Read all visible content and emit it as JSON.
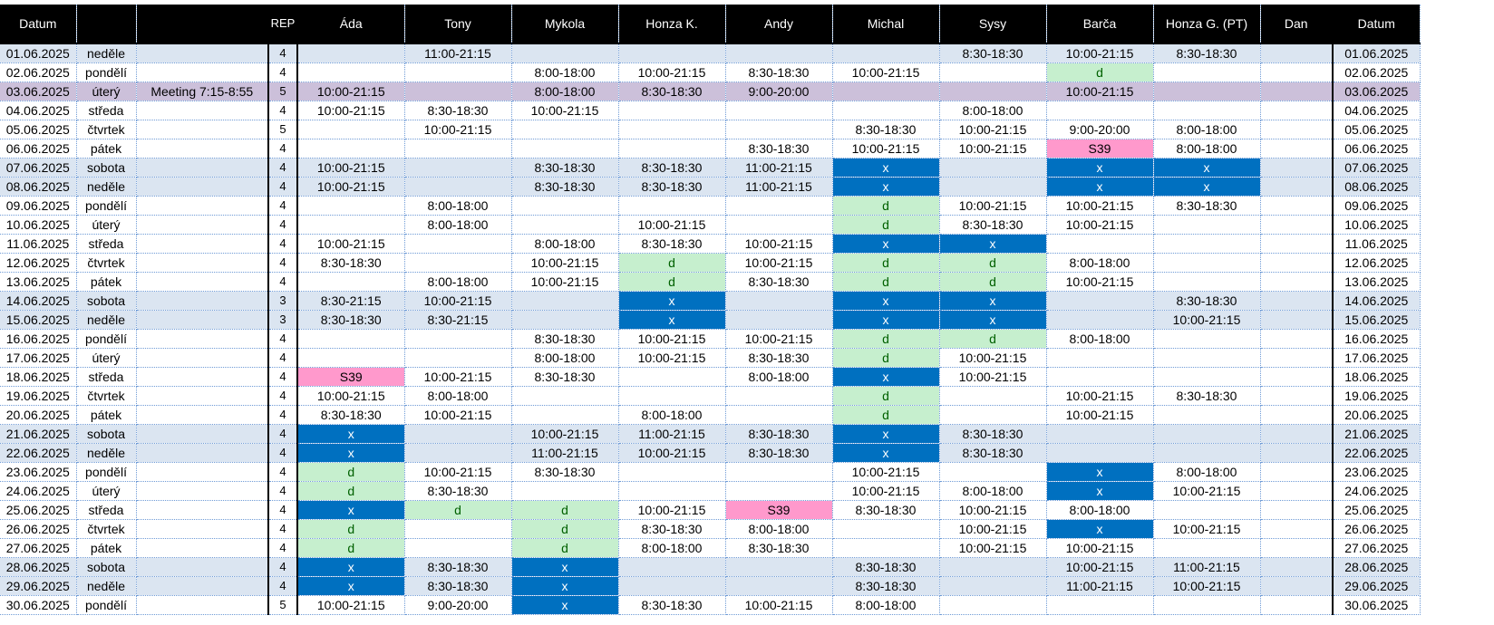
{
  "header": [
    "Datum",
    "",
    "",
    "REP",
    "Áda",
    "Tony",
    "Mykola",
    "Honza K.",
    "Andy",
    "Michal",
    "Sysy",
    "Barča",
    "Honza G. (PT)",
    "Dan",
    "Datum"
  ],
  "rows": [
    {
      "date": "01.06.2025",
      "day": "neděle",
      "note": "",
      "rep": "4",
      "shifts": [
        "",
        "11:00-21:15",
        "",
        "",
        "",
        "",
        "8:30-18:30",
        "10:00-21:15",
        "8:30-18:30",
        ""
      ]
    },
    {
      "date": "02.06.2025",
      "day": "pondělí",
      "note": "",
      "rep": "4",
      "shifts": [
        "",
        "",
        "8:00-18:00",
        "10:00-21:15",
        "8:30-18:30",
        "10:00-21:15",
        "",
        "d",
        "",
        ""
      ]
    },
    {
      "date": "03.06.2025",
      "day": "úterý",
      "note": "Meeting 7:15-8:55",
      "rep": "5",
      "shifts": [
        "10:00-21:15",
        "",
        "8:00-18:00",
        "8:30-18:30",
        "9:00-20:00",
        "",
        "",
        "10:00-21:15",
        "",
        ""
      ]
    },
    {
      "date": "04.06.2025",
      "day": "středa",
      "note": "",
      "rep": "4",
      "shifts": [
        "10:00-21:15",
        "8:30-18:30",
        "10:00-21:15",
        "",
        "",
        "",
        "8:00-18:00",
        "",
        "",
        ""
      ]
    },
    {
      "date": "05.06.2025",
      "day": "čtvrtek",
      "note": "",
      "rep": "5",
      "shifts": [
        "",
        "10:00-21:15",
        "",
        "",
        "",
        "8:30-18:30",
        "10:00-21:15",
        "9:00-20:00",
        "8:00-18:00",
        ""
      ]
    },
    {
      "date": "06.06.2025",
      "day": "pátek",
      "note": "",
      "rep": "4",
      "shifts": [
        "",
        "",
        "",
        "",
        "8:30-18:30",
        "10:00-21:15",
        "10:00-21:15",
        "S39",
        "8:00-18:00",
        ""
      ]
    },
    {
      "date": "07.06.2025",
      "day": "sobota",
      "note": "",
      "rep": "4",
      "shifts": [
        "10:00-21:15",
        "",
        "8:30-18:30",
        "8:30-18:30",
        "11:00-21:15",
        "x",
        "",
        "x",
        "x",
        ""
      ]
    },
    {
      "date": "08.06.2025",
      "day": "neděle",
      "note": "",
      "rep": "4",
      "shifts": [
        "10:00-21:15",
        "",
        "8:30-18:30",
        "8:30-18:30",
        "11:00-21:15",
        "x",
        "",
        "x",
        "x",
        ""
      ]
    },
    {
      "date": "09.06.2025",
      "day": "pondělí",
      "note": "",
      "rep": "4",
      "shifts": [
        "",
        "8:00-18:00",
        "",
        "",
        "",
        "d",
        "10:00-21:15",
        "10:00-21:15",
        "8:30-18:30",
        ""
      ]
    },
    {
      "date": "10.06.2025",
      "day": "úterý",
      "note": "",
      "rep": "4",
      "shifts": [
        "",
        "8:00-18:00",
        "",
        "10:00-21:15",
        "",
        "d",
        "8:30-18:30",
        "10:00-21:15",
        "",
        ""
      ]
    },
    {
      "date": "11.06.2025",
      "day": "středa",
      "note": "",
      "rep": "4",
      "shifts": [
        "10:00-21:15",
        "",
        "8:00-18:00",
        "8:30-18:30",
        "10:00-21:15",
        "x",
        "x",
        "",
        "",
        ""
      ]
    },
    {
      "date": "12.06.2025",
      "day": "čtvrtek",
      "note": "",
      "rep": "4",
      "shifts": [
        "8:30-18:30",
        "",
        "10:00-21:15",
        "d",
        "10:00-21:15",
        "d",
        "d",
        "8:00-18:00",
        "",
        ""
      ]
    },
    {
      "date": "13.06.2025",
      "day": "pátek",
      "note": "",
      "rep": "4",
      "shifts": [
        "",
        "8:00-18:00",
        "10:00-21:15",
        "d",
        "8:30-18:30",
        "d",
        "d",
        "10:00-21:15",
        "",
        ""
      ]
    },
    {
      "date": "14.06.2025",
      "day": "sobota",
      "note": "",
      "rep": "3",
      "shifts": [
        "8:30-21:15",
        "10:00-21:15",
        "",
        "x",
        "",
        "x",
        "x",
        "",
        "8:30-18:30",
        ""
      ]
    },
    {
      "date": "15.06.2025",
      "day": "neděle",
      "note": "",
      "rep": "3",
      "shifts": [
        "8:30-18:30",
        "8:30-21:15",
        "",
        "x",
        "",
        "x",
        "x",
        "",
        "10:00-21:15",
        ""
      ]
    },
    {
      "date": "16.06.2025",
      "day": "pondělí",
      "note": "",
      "rep": "4",
      "shifts": [
        "",
        "",
        "8:30-18:30",
        "10:00-21:15",
        "10:00-21:15",
        "d",
        "d",
        "8:00-18:00",
        "",
        ""
      ]
    },
    {
      "date": "17.06.2025",
      "day": "úterý",
      "note": "",
      "rep": "4",
      "shifts": [
        "",
        "",
        "8:00-18:00",
        "10:00-21:15",
        "8:30-18:30",
        "d",
        "10:00-21:15",
        "",
        "",
        ""
      ]
    },
    {
      "date": "18.06.2025",
      "day": "středa",
      "note": "",
      "rep": "4",
      "shifts": [
        "S39",
        "10:00-21:15",
        "8:30-18:30",
        "",
        "8:00-18:00",
        "x",
        "10:00-21:15",
        "",
        "",
        ""
      ]
    },
    {
      "date": "19.06.2025",
      "day": "čtvrtek",
      "note": "",
      "rep": "4",
      "shifts": [
        "10:00-21:15",
        "8:00-18:00",
        "",
        "",
        "",
        "d",
        "",
        "10:00-21:15",
        "8:30-18:30",
        ""
      ]
    },
    {
      "date": "20.06.2025",
      "day": "pátek",
      "note": "",
      "rep": "4",
      "shifts": [
        "8:30-18:30",
        "10:00-21:15",
        "",
        "8:00-18:00",
        "",
        "d",
        "",
        "10:00-21:15",
        "",
        ""
      ]
    },
    {
      "date": "21.06.2025",
      "day": "sobota",
      "note": "",
      "rep": "4",
      "shifts": [
        "x",
        "",
        "10:00-21:15",
        "11:00-21:15",
        "8:30-18:30",
        "x",
        "8:30-18:30",
        "",
        "",
        ""
      ]
    },
    {
      "date": "22.06.2025",
      "day": "neděle",
      "note": "",
      "rep": "4",
      "shifts": [
        "x",
        "",
        "11:00-21:15",
        "10:00-21:15",
        "8:30-18:30",
        "x",
        "8:30-18:30",
        "",
        "",
        ""
      ]
    },
    {
      "date": "23.06.2025",
      "day": "pondělí",
      "note": "",
      "rep": "4",
      "shifts": [
        "d",
        "10:00-21:15",
        "8:30-18:30",
        "",
        "",
        "10:00-21:15",
        "",
        "x",
        "8:00-18:00",
        ""
      ]
    },
    {
      "date": "24.06.2025",
      "day": "úterý",
      "note": "",
      "rep": "4",
      "shifts": [
        "d",
        "8:30-18:30",
        "",
        "",
        "",
        "10:00-21:15",
        "8:00-18:00",
        "x",
        "10:00-21:15",
        ""
      ]
    },
    {
      "date": "25.06.2025",
      "day": "středa",
      "note": "",
      "rep": "4",
      "shifts": [
        "x",
        "d",
        "d",
        "10:00-21:15",
        "S39",
        "8:30-18:30",
        "10:00-21:15",
        "8:00-18:00",
        "",
        ""
      ]
    },
    {
      "date": "26.06.2025",
      "day": "čtvrtek",
      "note": "",
      "rep": "4",
      "shifts": [
        "d",
        "",
        "d",
        "8:30-18:30",
        "8:00-18:00",
        "",
        "10:00-21:15",
        "x",
        "10:00-21:15",
        ""
      ]
    },
    {
      "date": "27.06.2025",
      "day": "pátek",
      "note": "",
      "rep": "4",
      "shifts": [
        "d",
        "",
        "d",
        "8:00-18:00",
        "8:30-18:30",
        "",
        "10:00-21:15",
        "10:00-21:15",
        "",
        ""
      ]
    },
    {
      "date": "28.06.2025",
      "day": "sobota",
      "note": "",
      "rep": "4",
      "shifts": [
        "x",
        "8:30-18:30",
        "x",
        "",
        "",
        "8:30-18:30",
        "",
        "10:00-21:15",
        "11:00-21:15",
        ""
      ]
    },
    {
      "date": "29.06.2025",
      "day": "neděle",
      "note": "",
      "rep": "4",
      "shifts": [
        "x",
        "8:30-18:30",
        "x",
        "",
        "",
        "8:30-18:30",
        "",
        "11:00-21:15",
        "10:00-21:15",
        ""
      ]
    },
    {
      "date": "30.06.2025",
      "day": "pondělí",
      "note": "",
      "rep": "5",
      "shifts": [
        "10:00-21:15",
        "9:00-20:00",
        "x",
        "8:30-18:30",
        "10:00-21:15",
        "8:00-18:00",
        "",
        "",
        "",
        ""
      ]
    }
  ],
  "colors": {
    "header_bg": "#000000",
    "weekend_row": "#dbe5f1",
    "meeting_row": "#ccc0da",
    "off_x": "#0070c0",
    "d_fill": "#c6efce",
    "s39_fill": "#ff99cc"
  }
}
